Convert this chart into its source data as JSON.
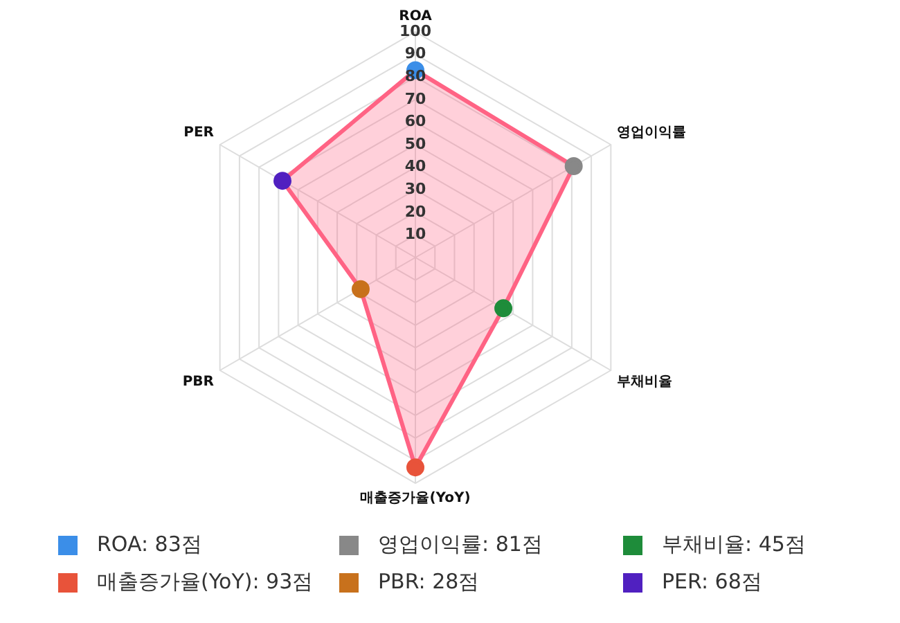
{
  "chart_data": {
    "type": "radar",
    "categories": [
      "ROA",
      "영업이익률",
      "부채비율",
      "매출증가율(YoY)",
      "PBR",
      "PER"
    ],
    "series": [
      {
        "color": "#ff6384",
        "values": [
          83,
          81,
          45,
          93,
          28,
          68
        ],
        "colors": [
          "#3b8ee8",
          "#888888",
          "#1e8c3a",
          "#e8533a",
          "#c8711c",
          "#5020c0"
        ]
      }
    ],
    "annotations": [
      "ROA: 83점",
      "영업이익률: 81점",
      "부채비율: 45점",
      "매출증가율(YoY): 93점",
      "PBR: 28점",
      "PER: 68점"
    ],
    "ylim": [
      0,
      100
    ],
    "yticks": [
      10,
      20,
      30,
      40,
      50,
      60,
      70,
      80,
      90,
      100
    ],
    "grid": true,
    "marker": "circle"
  }
}
